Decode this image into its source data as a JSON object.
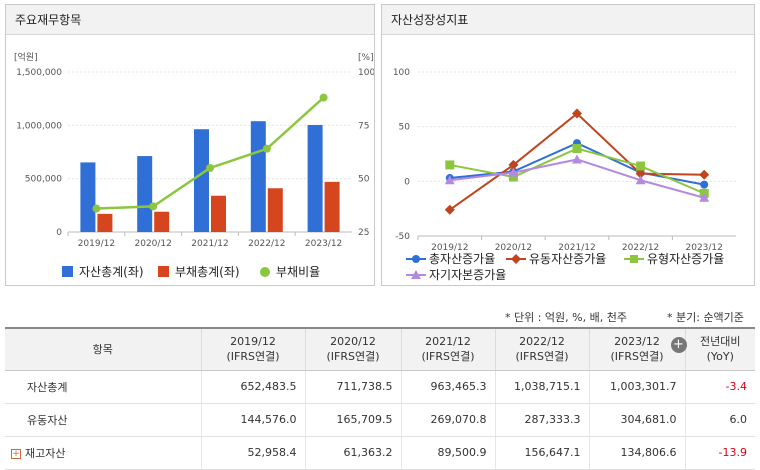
{
  "left_panel": {
    "title": "주요재무항목"
  },
  "right_panel": {
    "title": "자산성장성지표"
  },
  "note_unit": "* 단위 : 억원, %, 배, 천주",
  "note_period": "* 분기: 순액기준",
  "chart_data": [
    {
      "type": "bar",
      "title": "주요재무항목",
      "categories": [
        "2019/12",
        "2020/12",
        "2021/12",
        "2022/12",
        "2023/12"
      ],
      "left_unit": "[억원]",
      "right_unit": "[%]",
      "left_ticks": [
        "1,500,000",
        "1,000,000",
        "500,000",
        "0"
      ],
      "left_tick_values": [
        1500000,
        1000000,
        500000,
        0
      ],
      "right_ticks": [
        "100",
        "75",
        "50",
        "25"
      ],
      "right_tick_values": [
        100,
        75,
        50,
        25
      ],
      "ylim_left": [
        0,
        1500000
      ],
      "ylim_right": [
        25,
        100
      ],
      "series": [
        {
          "name": "자산총계(좌)",
          "kind": "bar",
          "axis": "left",
          "color": "#2f6fd6",
          "values": [
            652483.5,
            711738.5,
            963465.3,
            1038715.1,
            1003301.7
          ]
        },
        {
          "name": "부채총계(좌)",
          "kind": "bar",
          "axis": "left",
          "color": "#d6461e",
          "values": [
            170000,
            190000,
            340000,
            410000,
            470000
          ]
        },
        {
          "name": "부채비율",
          "kind": "line",
          "axis": "right",
          "color": "#8cc63f",
          "values": [
            36,
            37,
            55,
            64,
            88
          ]
        }
      ]
    },
    {
      "type": "line",
      "title": "자산성장성지표",
      "categories": [
        "2019/12",
        "2020/12",
        "2021/12",
        "2022/12",
        "2023/12"
      ],
      "ticks": [
        "100",
        "50",
        "0",
        "-50"
      ],
      "tick_values": [
        100,
        50,
        0,
        -50
      ],
      "ylim": [
        -50,
        100
      ],
      "series": [
        {
          "name": "총자산증가율",
          "color": "#2f6fd6",
          "marker": "circle",
          "values": [
            3,
            9,
            35,
            8,
            -3
          ]
        },
        {
          "name": "유동자산증가율",
          "color": "#c0441e",
          "marker": "diamond",
          "values": [
            -26,
            15,
            62,
            7,
            6
          ]
        },
        {
          "name": "유형자산증가율",
          "color": "#8cc63f",
          "marker": "square",
          "values": [
            15,
            4,
            30,
            14,
            -11
          ]
        },
        {
          "name": "자기자본증가율",
          "color": "#b48ae0",
          "marker": "triangle",
          "values": [
            1,
            8,
            20,
            1,
            -15
          ]
        }
      ]
    }
  ],
  "table": {
    "header_item": "항목",
    "columns": [
      {
        "period": "2019/12",
        "basis": "(IFRS연결)"
      },
      {
        "period": "2020/12",
        "basis": "(IFRS연결)"
      },
      {
        "period": "2021/12",
        "basis": "(IFRS연결)"
      },
      {
        "period": "2022/12",
        "basis": "(IFRS연결)"
      },
      {
        "period": "2023/12",
        "basis": "(IFRS연결)"
      }
    ],
    "yoy_header": "전년대비",
    "yoy_sub": "(YoY)",
    "add_icon": "+",
    "expand_icon": "+",
    "rows": [
      {
        "name": "자산총계",
        "values": [
          "652,483.5",
          "711,738.5",
          "963,465.3",
          "1,038,715.1",
          "1,003,301.7"
        ],
        "yoy": "-3.4",
        "expandable": false
      },
      {
        "name": "유동자산",
        "values": [
          "144,576.0",
          "165,709.5",
          "269,070.8",
          "287,333.3",
          "304,681.0"
        ],
        "yoy": "6.0",
        "expandable": false
      },
      {
        "name": "재고자산",
        "values": [
          "52,958.4",
          "61,363.2",
          "89,500.9",
          "156,647.1",
          "134,806.6"
        ],
        "yoy": "-13.9",
        "expandable": true
      }
    ]
  }
}
